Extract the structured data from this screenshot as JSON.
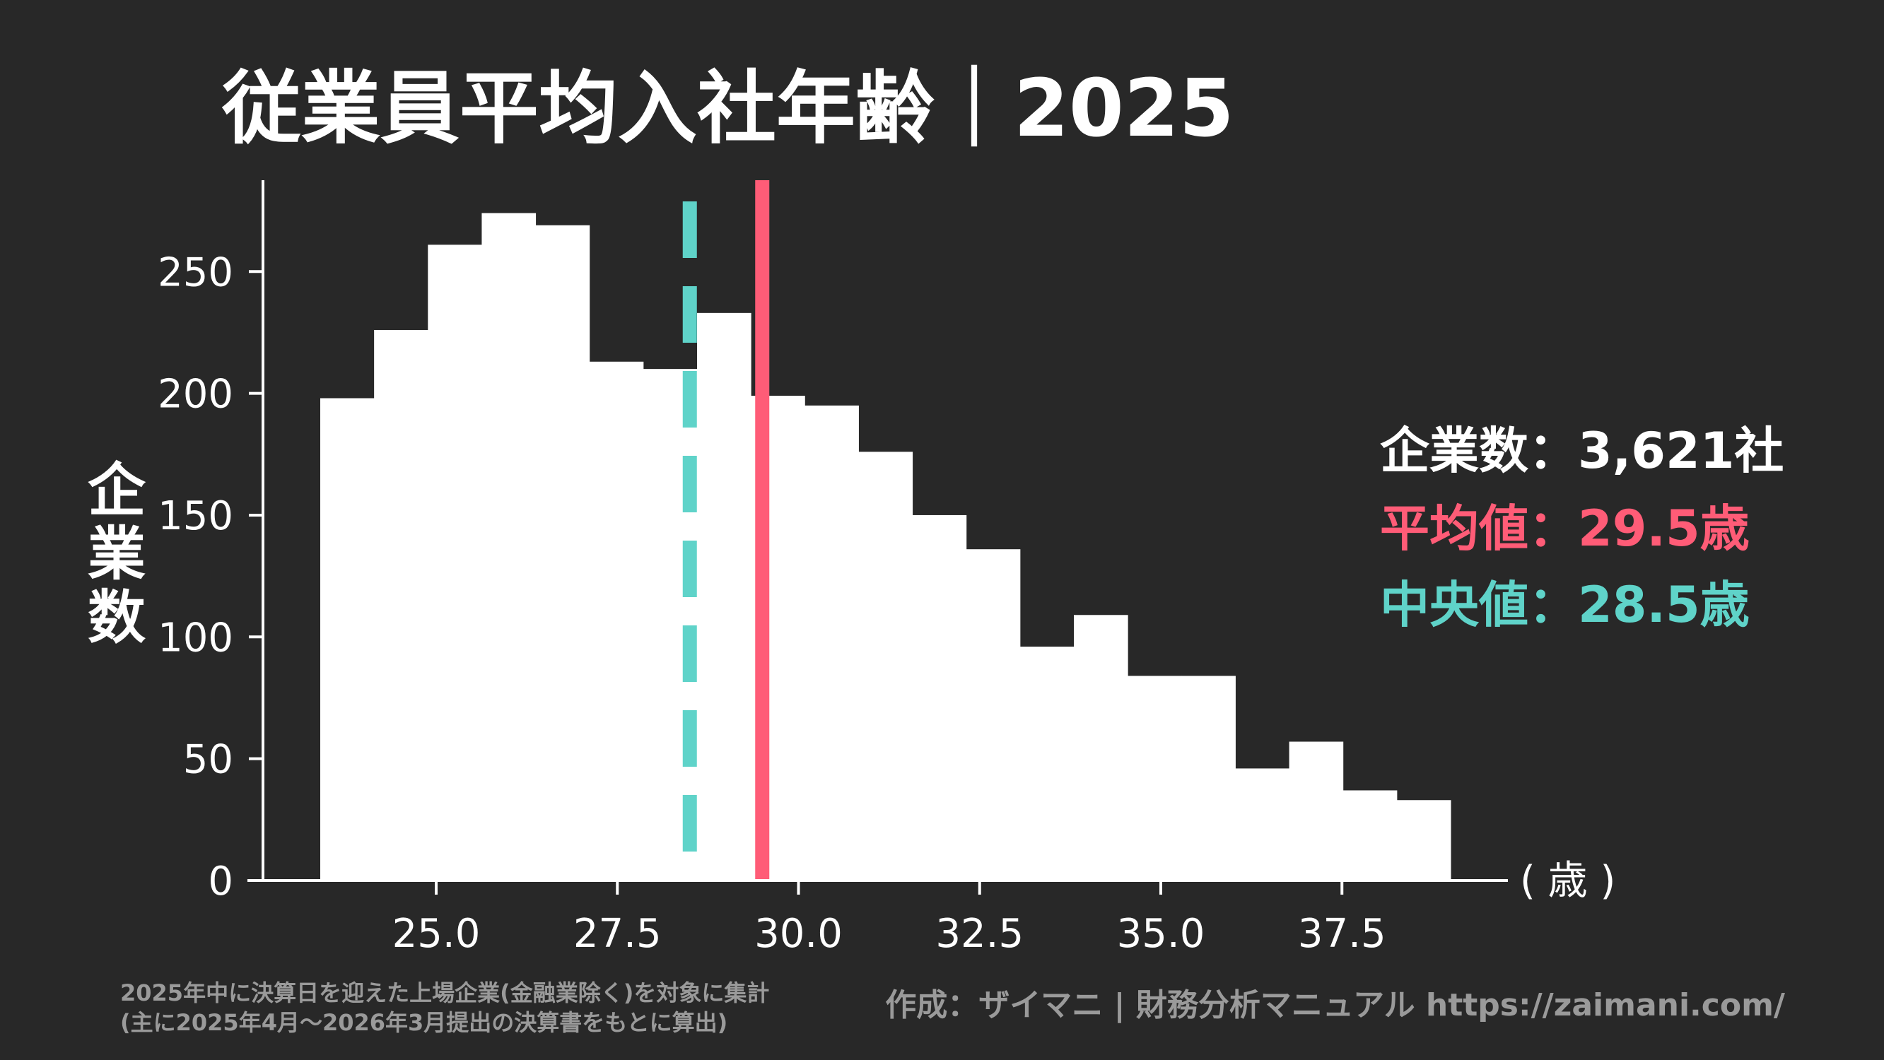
{
  "chart_data": {
    "type": "bar",
    "title": "従業員平均入社年齢｜2025",
    "ylabel": "企業数",
    "xlabel": "( 歳 )",
    "bin_range": [
      23.4,
      39.0
    ],
    "counts": [
      198,
      226,
      261,
      274,
      269,
      213,
      210,
      233,
      199,
      195,
      176,
      150,
      136,
      96,
      109,
      84,
      84,
      46,
      57,
      37,
      33
    ],
    "xlim": [
      22.5,
      40.2
    ],
    "ylim": [
      0,
      287
    ],
    "xticks": [
      "25.0",
      "27.5",
      "30.0",
      "32.5",
      "35.0",
      "37.5"
    ],
    "yticks": [
      "0",
      "50",
      "100",
      "150",
      "200",
      "250"
    ],
    "mean": 29.5,
    "median": 28.5,
    "colors": {
      "bars": "#ffffff",
      "mean": "#ff5c77",
      "median": "#5fd3c9",
      "background": "#282828"
    }
  },
  "stats": {
    "count": "企業数：3,621社",
    "mean": "平均値：29.5歳",
    "median": "中央値：28.5歳"
  },
  "footnote": {
    "line1": "2025年中に決算日を迎えた上場企業(金融業除く)を対象に集計",
    "line2": "(主に2025年4月～2026年3月提出の決算書をもとに算出)"
  },
  "credit": "作成：ザイマニ | 財務分析マニュアル https://zaimani.com/"
}
